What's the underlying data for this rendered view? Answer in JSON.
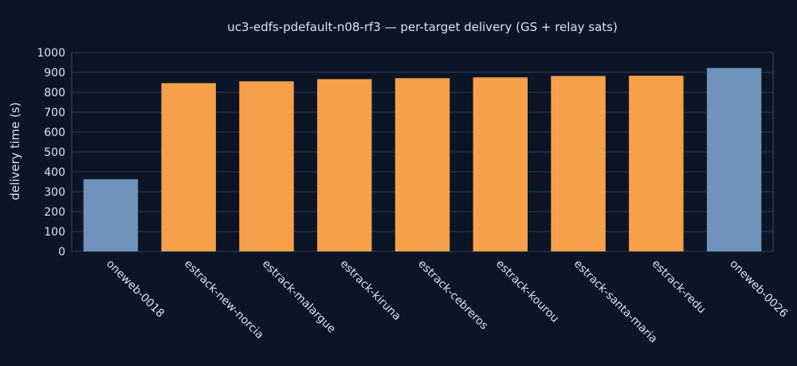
{
  "chart_data": {
    "type": "bar",
    "title": "uc3-edfs-pdefault-n08-rf3 — per-target delivery (GS + relay sats)",
    "xlabel": "",
    "ylabel": "delivery time (s)",
    "ylim": [
      0,
      1000
    ],
    "yticks": [
      0,
      100,
      200,
      300,
      400,
      500,
      600,
      700,
      800,
      900,
      1000
    ],
    "grid": true,
    "categories": [
      "oneweb-0018",
      "estrack-new-norcia",
      "estrack-malargue",
      "estrack-kiruna",
      "estrack-cebreros",
      "estrack-kourou",
      "estrack-santa-maria",
      "estrack-redu",
      "oneweb-0026"
    ],
    "values": [
      363,
      846,
      855,
      866,
      871,
      875,
      882,
      883,
      922
    ],
    "bar_colors": [
      "#6f93ba",
      "#f7a04a",
      "#f7a04a",
      "#f7a04a",
      "#f7a04a",
      "#f7a04a",
      "#f7a04a",
      "#f7a04a",
      "#6f93ba"
    ]
  }
}
